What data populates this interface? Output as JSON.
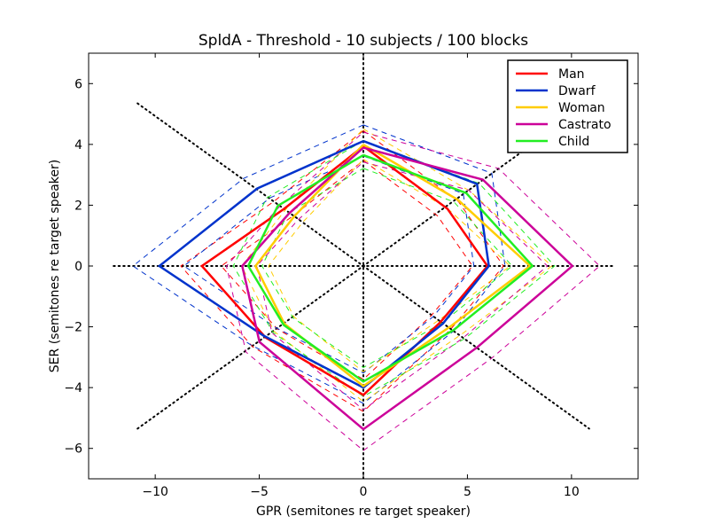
{
  "chart_data": {
    "type": "line",
    "title": "SpldA - Threshold - 10 subjects / 100 blocks",
    "xlabel": "GPR (semitones re target speaker)",
    "ylabel": "SER (semitones re target speaker)",
    "xlim": [
      -13.2,
      13.2
    ],
    "ylim": [
      -7,
      7
    ],
    "xticks": [
      -10,
      -5,
      0,
      5,
      10
    ],
    "xtick_labels": [
      "−10",
      "−5",
      "0",
      "5",
      "10"
    ],
    "yticks": [
      -6,
      -4,
      -2,
      0,
      2,
      4,
      6
    ],
    "ytick_labels": [
      "−6",
      "−4",
      "−2",
      "0",
      "2",
      "4",
      "6"
    ],
    "grid": false,
    "legend_position": "top-right",
    "reference_lines": [
      {
        "style": "dotted",
        "points": [
          [
            -12,
            0
          ],
          [
            12,
            0
          ]
        ]
      },
      {
        "style": "dotted",
        "points": [
          [
            0,
            -7
          ],
          [
            0,
            7
          ]
        ]
      },
      {
        "style": "dotted",
        "points": [
          [
            -10.85,
            5.35
          ],
          [
            10.85,
            -5.35
          ]
        ]
      },
      {
        "style": "dotted",
        "points": [
          [
            -10.85,
            -5.35
          ],
          [
            10.85,
            5.35
          ]
        ]
      }
    ],
    "series": [
      {
        "name": "Man",
        "color": "#ff0000",
        "points": [
          [
            0,
            3.94
          ],
          [
            4.04,
            1.88
          ],
          [
            5.96,
            0
          ],
          [
            3.7,
            -1.85
          ],
          [
            0,
            -4.24
          ],
          [
            -4.7,
            -2.35
          ],
          [
            -7.76,
            0
          ],
          [
            -3.83,
            1.87
          ]
        ],
        "lower": [
          [
            0,
            3.47
          ],
          [
            3.56,
            1.65
          ],
          [
            5.24,
            0
          ],
          [
            3.26,
            -1.63
          ],
          [
            0,
            -3.73
          ],
          [
            -4.14,
            -2.07
          ],
          [
            -6.83,
            0
          ],
          [
            -3.37,
            1.65
          ]
        ],
        "upper": [
          [
            0,
            4.45
          ],
          [
            4.57,
            2.12
          ],
          [
            6.73,
            0
          ],
          [
            4.18,
            -2.09
          ],
          [
            0,
            -4.79
          ],
          [
            -5.31,
            -2.66
          ],
          [
            -8.77,
            0
          ],
          [
            -4.33,
            2.11
          ]
        ]
      },
      {
        "name": "Dwarf",
        "color": "#0033cc",
        "points": [
          [
            0,
            4.11
          ],
          [
            5.46,
            2.7
          ],
          [
            6.03,
            0
          ],
          [
            3.83,
            -1.89
          ],
          [
            0,
            -4.0
          ],
          [
            -4.8,
            -2.29
          ],
          [
            -9.8,
            0
          ],
          [
            -5.1,
            2.55
          ]
        ],
        "lower": [
          [
            0,
            3.62
          ],
          [
            4.8,
            2.38
          ],
          [
            5.31,
            0
          ],
          [
            3.37,
            -1.66
          ],
          [
            0,
            -3.52
          ],
          [
            -4.22,
            -2.02
          ],
          [
            -8.62,
            0
          ],
          [
            -4.49,
            2.24
          ]
        ],
        "upper": [
          [
            0,
            4.64
          ],
          [
            6.17,
            3.05
          ],
          [
            6.81,
            0
          ],
          [
            4.33,
            -2.14
          ],
          [
            0,
            -4.52
          ],
          [
            -5.42,
            -2.59
          ],
          [
            -11.07,
            0
          ],
          [
            -5.76,
            2.88
          ]
        ]
      },
      {
        "name": "Woman",
        "color": "#ffcc00",
        "points": [
          [
            0,
            3.99
          ],
          [
            4.54,
            2.18
          ],
          [
            8.01,
            0
          ],
          [
            4.26,
            -1.95
          ],
          [
            0,
            -3.95
          ],
          [
            -3.8,
            -1.9
          ],
          [
            -5.18,
            0
          ],
          [
            -3.3,
            1.65
          ]
        ],
        "lower": [
          [
            0,
            3.51
          ],
          [
            4.0,
            1.92
          ],
          [
            7.05,
            0
          ],
          [
            3.75,
            -1.72
          ],
          [
            0,
            -3.48
          ],
          [
            -3.34,
            -1.67
          ],
          [
            -4.56,
            0
          ],
          [
            -2.9,
            1.45
          ]
        ],
        "upper": [
          [
            0,
            4.51
          ],
          [
            5.13,
            2.46
          ],
          [
            9.05,
            0
          ],
          [
            4.81,
            -2.2
          ],
          [
            0,
            -4.46
          ],
          [
            -4.29,
            -2.15
          ],
          [
            -5.85,
            0
          ],
          [
            -3.73,
            1.86
          ]
        ]
      },
      {
        "name": "Castrato",
        "color": "#cc0099",
        "points": [
          [
            0,
            3.89
          ],
          [
            5.74,
            2.84
          ],
          [
            10.04,
            0
          ],
          [
            5.46,
            -2.68
          ],
          [
            0,
            -5.37
          ],
          [
            -4.99,
            -2.5
          ],
          [
            -5.82,
            0
          ],
          [
            -3.55,
            1.74
          ]
        ],
        "lower": [
          [
            0,
            3.42
          ],
          [
            5.05,
            2.5
          ],
          [
            8.84,
            0
          ],
          [
            4.8,
            -2.36
          ],
          [
            0,
            -4.73
          ],
          [
            -4.39,
            -2.2
          ],
          [
            -5.12,
            0
          ],
          [
            -3.12,
            1.53
          ]
        ],
        "upper": [
          [
            0,
            4.4
          ],
          [
            6.49,
            3.21
          ],
          [
            11.35,
            0
          ],
          [
            6.17,
            -3.03
          ],
          [
            0,
            -6.07
          ],
          [
            -5.64,
            -2.83
          ],
          [
            -6.58,
            0
          ],
          [
            -4.01,
            1.97
          ]
        ]
      },
      {
        "name": "Child",
        "color": "#22ee22",
        "points": [
          [
            0,
            3.65
          ],
          [
            4.94,
            2.4
          ],
          [
            8.13,
            0
          ],
          [
            4.33,
            -2.11
          ],
          [
            0,
            -3.8
          ],
          [
            -3.83,
            -1.94
          ],
          [
            -5.53,
            0
          ],
          [
            -4.11,
            1.98
          ]
        ],
        "lower": [
          [
            0,
            3.21
          ],
          [
            4.35,
            2.11
          ],
          [
            7.15,
            0
          ],
          [
            3.81,
            -1.86
          ],
          [
            0,
            -3.34
          ],
          [
            -3.37,
            -1.71
          ],
          [
            -4.87,
            0
          ],
          [
            -3.62,
            1.74
          ]
        ],
        "upper": [
          [
            0,
            4.12
          ],
          [
            5.58,
            2.71
          ],
          [
            9.19,
            0
          ],
          [
            4.89,
            -2.38
          ],
          [
            0,
            -4.29
          ],
          [
            -4.33,
            -2.19
          ],
          [
            -6.25,
            0
          ],
          [
            -4.64,
            2.24
          ]
        ]
      }
    ]
  }
}
